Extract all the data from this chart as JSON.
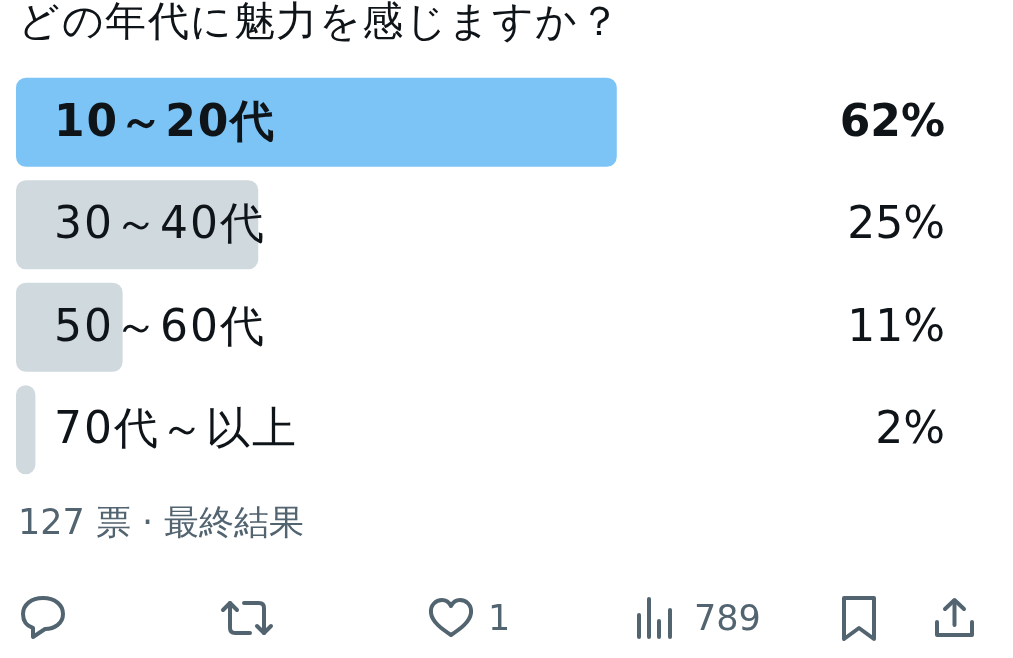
{
  "chart_data": {
    "type": "bar",
    "orientation": "horizontal",
    "title": "どの年代に魅力を感じますか？",
    "categories": [
      "10～20代",
      "30～40代",
      "50～60代",
      "70代～以上"
    ],
    "values": [
      62,
      25,
      11,
      2
    ],
    "colors": [
      "#7cc4f6",
      "#cfd9de",
      "#cfd9de",
      "#cfd9de"
    ],
    "value_labels": [
      "62%",
      "25%",
      "11%",
      "2%"
    ],
    "tick_labels": "y",
    "annotations": [
      "127 票 · 最終結果",
      "1",
      "789"
    ]
  }
}
